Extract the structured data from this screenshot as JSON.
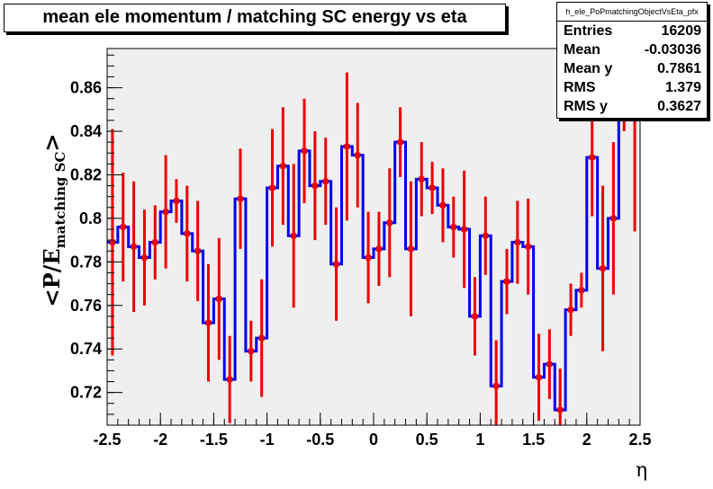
{
  "title": "mean ele momentum / matching SC energy vs eta",
  "stats": {
    "name": "h_ele_PoPmatchingObjectVsEta_pfx",
    "rows": [
      {
        "label": "Entries",
        "value": "16209"
      },
      {
        "label": "Mean",
        "value": "-0.03036"
      },
      {
        "label": "Mean y",
        "value": "0.7861"
      },
      {
        "label": "RMS",
        "value": "1.379"
      },
      {
        "label": "RMS y",
        "value": "0.3627"
      }
    ]
  },
  "colors": {
    "histogram": "#0000ee",
    "points": "#ee0000",
    "frame_bg": "#efefef"
  },
  "chart_data": {
    "type": "line",
    "style": "step-profile-with-error-bars",
    "xlabel": "η",
    "ylabel_main": "<P/E",
    "ylabel_sub": "matching SC",
    "ylabel_close": ">",
    "xlim": [
      -2.5,
      2.5
    ],
    "ylim": [
      0.705,
      0.878
    ],
    "xticks": [
      -2.5,
      -2,
      -1.5,
      -1,
      -0.5,
      0,
      0.5,
      1,
      1.5,
      2,
      2.5
    ],
    "xtick_labels": [
      "-2.5",
      "-2",
      "-1.5",
      "-1",
      "-0.5",
      "0",
      "0.5",
      "1",
      "1.5",
      "2",
      "2.5"
    ],
    "yticks": [
      0.72,
      0.74,
      0.76,
      0.78,
      0.8,
      0.82,
      0.84,
      0.86
    ],
    "ytick_labels": [
      "0.72",
      "0.74",
      "0.76",
      "0.78",
      "0.8",
      "0.82",
      "0.84",
      "0.86"
    ],
    "bin_width": 0.1,
    "grid": false,
    "legend": "none",
    "x": [
      -2.45,
      -2.35,
      -2.25,
      -2.15,
      -2.05,
      -1.95,
      -1.85,
      -1.75,
      -1.65,
      -1.55,
      -1.45,
      -1.35,
      -1.25,
      -1.15,
      -1.05,
      -0.95,
      -0.85,
      -0.75,
      -0.65,
      -0.55,
      -0.45,
      -0.35,
      -0.25,
      -0.15,
      -0.05,
      0.05,
      0.15,
      0.25,
      0.35,
      0.45,
      0.55,
      0.65,
      0.75,
      0.85,
      0.95,
      1.05,
      1.15,
      1.25,
      1.35,
      1.45,
      1.55,
      1.65,
      1.75,
      1.85,
      1.95,
      2.05,
      2.15,
      2.25,
      2.35,
      2.45
    ],
    "y": [
      0.789,
      0.796,
      0.787,
      0.782,
      0.789,
      0.803,
      0.808,
      0.793,
      0.785,
      0.752,
      0.763,
      0.726,
      0.809,
      0.739,
      0.745,
      0.814,
      0.824,
      0.792,
      0.831,
      0.815,
      0.817,
      0.779,
      0.833,
      0.829,
      0.782,
      0.786,
      0.798,
      0.835,
      0.786,
      0.818,
      0.814,
      0.806,
      0.796,
      0.795,
      0.755,
      0.792,
      0.723,
      0.771,
      0.789,
      0.787,
      0.727,
      0.733,
      0.712,
      0.758,
      0.767,
      0.828,
      0.777,
      0.8,
      0.847,
      0.847
    ],
    "yerr": [
      0.052,
      0.025,
      0.03,
      0.022,
      0.017,
      0.026,
      0.01,
      0.022,
      0.023,
      0.027,
      0.028,
      0.02,
      0.023,
      0.014,
      0.027,
      0.027,
      0.027,
      0.033,
      0.024,
      0.025,
      0.02,
      0.026,
      0.034,
      0.024,
      0.021,
      0.017,
      0.025,
      0.016,
      0.031,
      0.017,
      0.012,
      0.017,
      0.014,
      0.027,
      0.018,
      0.018,
      0.021,
      0.015,
      0.019,
      0.022,
      0.02,
      0.016,
      0.019,
      0.012,
      0.008,
      0.027,
      0.038,
      0.035,
      0.007,
      0.053
    ]
  }
}
